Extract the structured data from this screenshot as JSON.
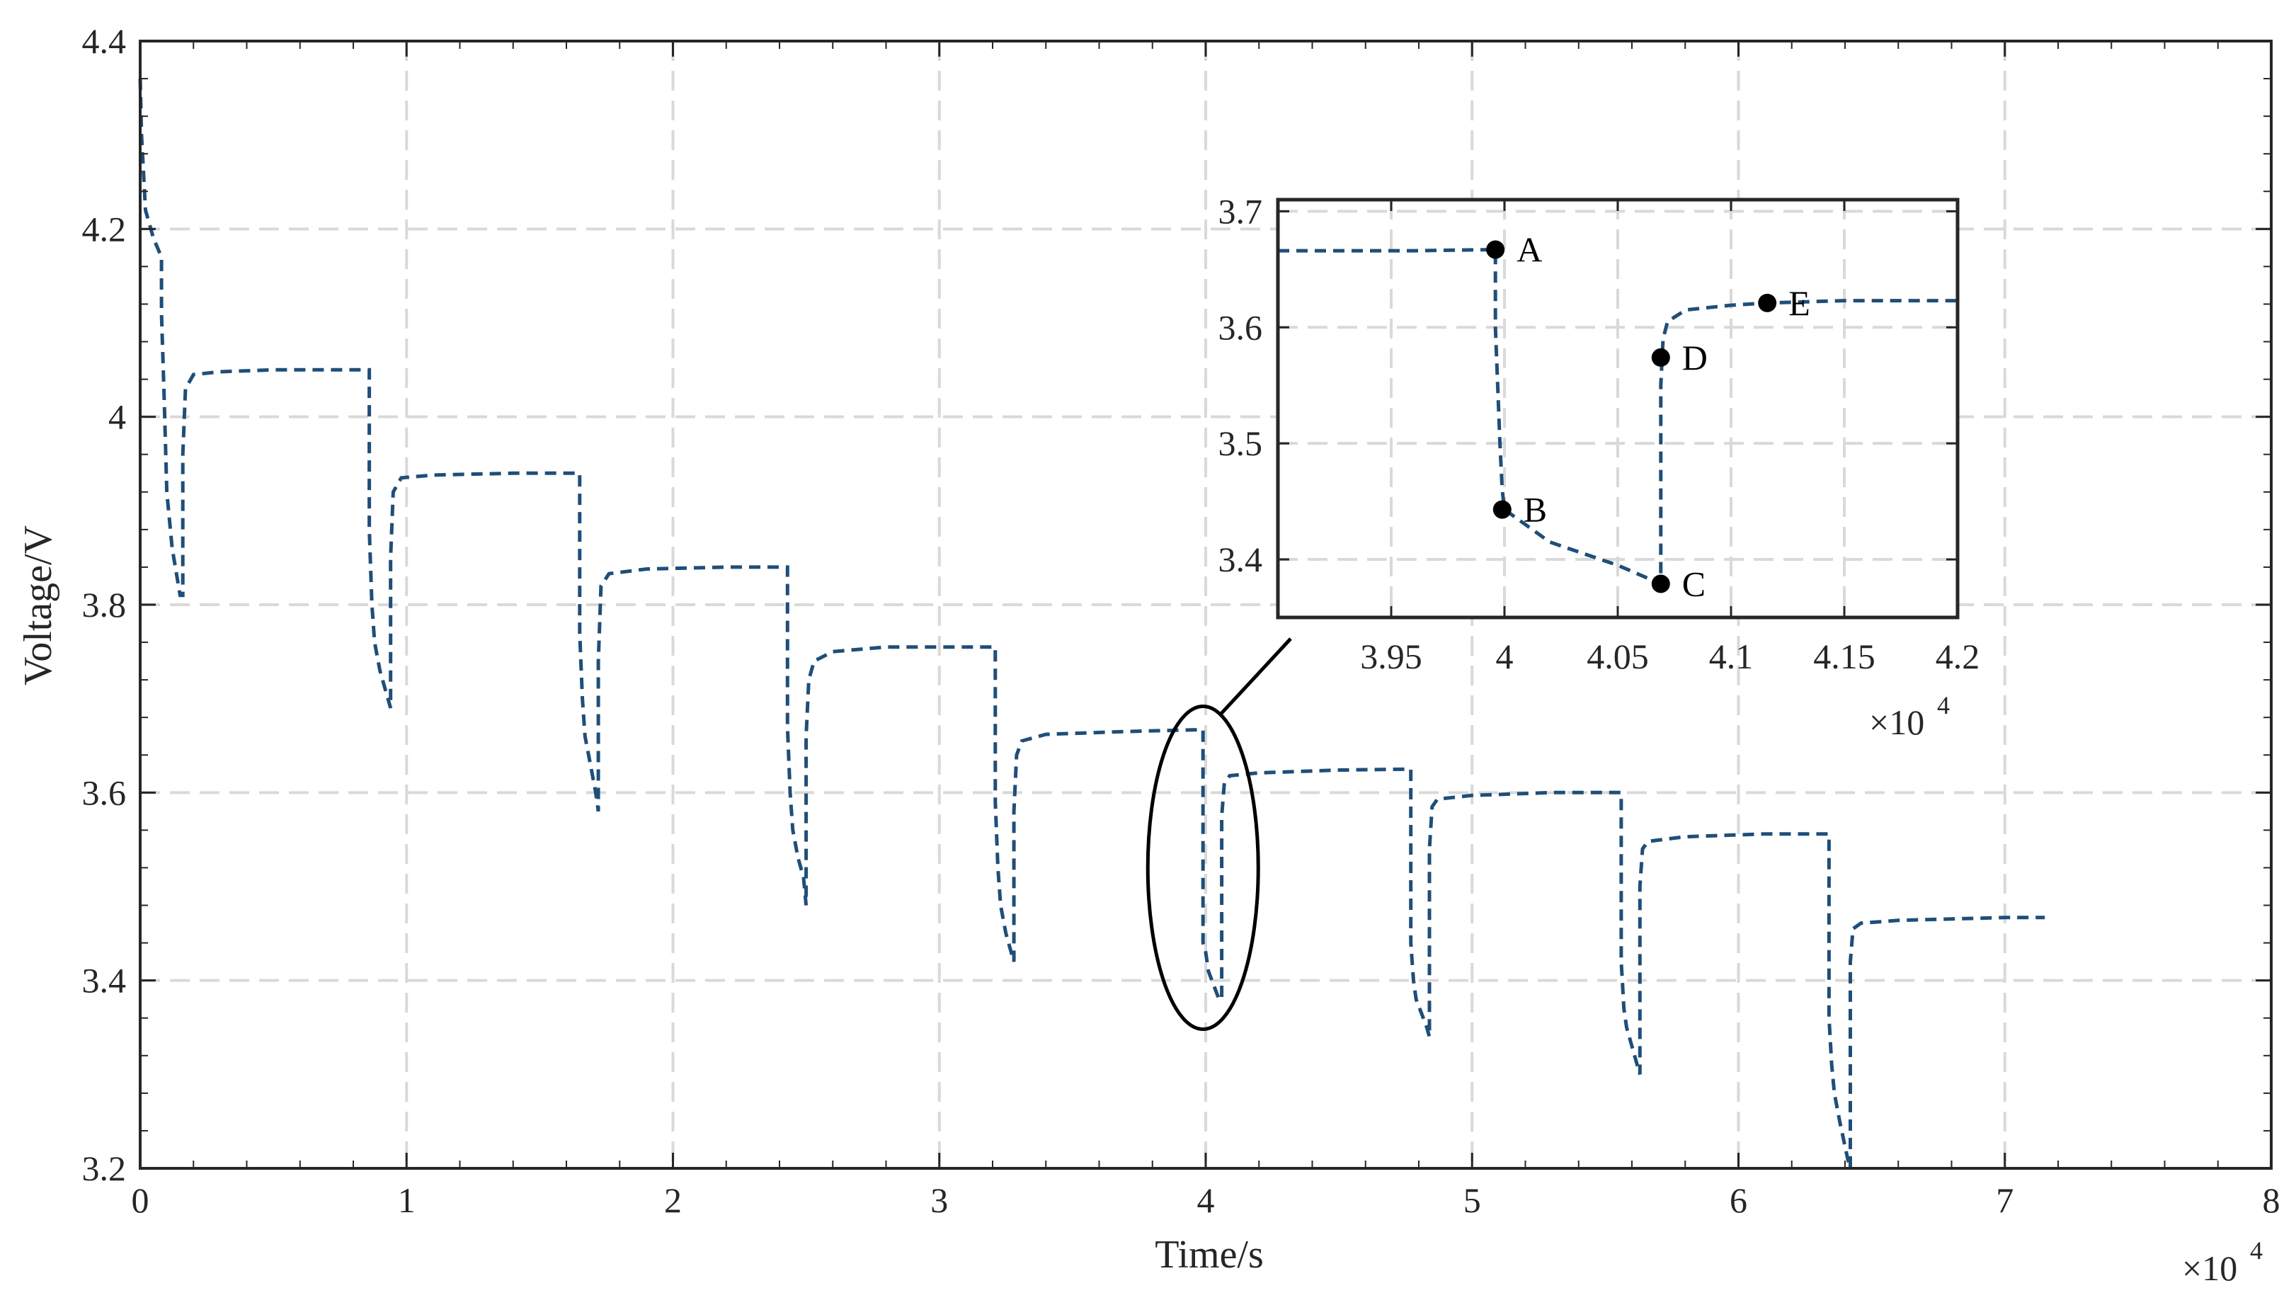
{
  "colors": {
    "series": "#1f4e79",
    "grid": "#d9d9d9",
    "axis": "#262626",
    "marker": "#000000"
  },
  "chart_data": [
    {
      "type": "line",
      "title": "",
      "xlabel": "Time/s",
      "ylabel": "Voltage/V",
      "x_multiplier": "×10^4",
      "xlim": [
        0,
        8
      ],
      "ylim": [
        3.2,
        4.4
      ],
      "x_tick_labels": [
        "0",
        "1",
        "2",
        "3",
        "4",
        "5",
        "6",
        "7",
        "8"
      ],
      "y_tick_labels": [
        "3.2",
        "3.4",
        "3.6",
        "3.8",
        "4",
        "4.2",
        "4.4"
      ],
      "grid": true,
      "line_style": "dashed",
      "series": [
        {
          "x": [
            0.0,
            0.005,
            0.02,
            0.05,
            0.08,
            0.08,
            0.09,
            0.1,
            0.12,
            0.15,
            0.16,
            0.16,
            0.17,
            0.2,
            0.3,
            0.5,
            0.86,
            0.86,
            0.87,
            0.88,
            0.9,
            0.93,
            0.94,
            0.94,
            0.95,
            0.98,
            1.1,
            1.4,
            1.65,
            1.65,
            1.66,
            1.67,
            1.69,
            1.71,
            1.72,
            1.72,
            1.73,
            1.76,
            1.9,
            2.2,
            2.43,
            2.43,
            2.44,
            2.45,
            2.47,
            2.49,
            2.5,
            2.5,
            2.51,
            2.53,
            2.6,
            2.8,
            3.21,
            3.21,
            3.22,
            3.23,
            3.25,
            3.27,
            3.28,
            3.28,
            3.29,
            3.31,
            3.4,
            3.7,
            3.99,
            3.99,
            4.0,
            4.01,
            4.03,
            4.05,
            4.06,
            4.06,
            4.07,
            4.09,
            4.2,
            4.5,
            4.77,
            4.77,
            4.78,
            4.79,
            4.81,
            4.83,
            4.84,
            4.84,
            4.85,
            4.87,
            5.0,
            5.3,
            5.56,
            5.56,
            5.57,
            5.58,
            5.6,
            5.62,
            5.63,
            5.63,
            5.64,
            5.66,
            5.8,
            6.1,
            6.34,
            6.34,
            6.35,
            6.36,
            6.38,
            6.41,
            6.42,
            6.42,
            6.43,
            6.46,
            6.6,
            7.0,
            7.15
          ],
          "y": [
            4.36,
            4.3,
            4.22,
            4.19,
            4.17,
            4.11,
            4.02,
            3.92,
            3.86,
            3.81,
            3.81,
            3.96,
            4.03,
            4.045,
            4.048,
            4.05,
            4.05,
            3.88,
            3.8,
            3.76,
            3.73,
            3.7,
            3.69,
            3.85,
            3.92,
            3.935,
            3.938,
            3.94,
            3.94,
            3.77,
            3.7,
            3.66,
            3.63,
            3.6,
            3.58,
            3.74,
            3.82,
            3.833,
            3.838,
            3.84,
            3.84,
            3.67,
            3.6,
            3.56,
            3.53,
            3.51,
            3.48,
            3.66,
            3.72,
            3.74,
            3.75,
            3.755,
            3.755,
            3.59,
            3.52,
            3.48,
            3.45,
            3.43,
            3.42,
            3.58,
            3.64,
            3.655,
            3.662,
            3.665,
            3.667,
            3.44,
            3.43,
            3.41,
            3.395,
            3.38,
            3.38,
            3.575,
            3.61,
            3.618,
            3.621,
            3.624,
            3.625,
            3.44,
            3.4,
            3.38,
            3.365,
            3.35,
            3.34,
            3.54,
            3.585,
            3.593,
            3.597,
            3.6,
            3.6,
            3.42,
            3.37,
            3.35,
            3.33,
            3.31,
            3.3,
            3.5,
            3.54,
            3.548,
            3.553,
            3.556,
            3.556,
            3.36,
            3.31,
            3.28,
            3.25,
            3.21,
            3.2,
            3.42,
            3.455,
            3.461,
            3.464,
            3.467,
            3.467
          ]
        }
      ],
      "annotations": [
        {
          "type": "ellipse",
          "center": [
            3.99,
            3.52
          ],
          "note_link": "inset"
        }
      ]
    },
    {
      "type": "line",
      "title": "",
      "xlabel": "",
      "ylabel": "",
      "x_multiplier": "×10^4",
      "xlim": [
        3.9,
        4.2
      ],
      "ylim": [
        3.35,
        3.71
      ],
      "x_tick_labels": [
        "3.95",
        "4",
        "4.05",
        "4.1",
        "4.15",
        "4.2"
      ],
      "y_tick_labels": [
        "3.4",
        "3.5",
        "3.6",
        "3.7"
      ],
      "grid": true,
      "line_style": "dashed",
      "series": [
        {
          "x": [
            3.9,
            3.96,
            3.996,
            3.996,
            3.998,
            3.999,
            4.0,
            4.02,
            4.05,
            4.069,
            4.069,
            4.07,
            4.072,
            4.08,
            4.1,
            4.116,
            4.15,
            4.2
          ],
          "y": [
            3.666,
            3.666,
            3.667,
            3.6,
            3.5,
            3.46,
            3.443,
            3.415,
            3.395,
            3.379,
            3.55,
            3.59,
            3.605,
            3.615,
            3.619,
            3.621,
            3.623,
            3.623
          ]
        }
      ],
      "points": [
        {
          "label": "A",
          "x": 3.996,
          "y": 3.667
        },
        {
          "label": "B",
          "x": 3.999,
          "y": 3.443
        },
        {
          "label": "C",
          "x": 4.069,
          "y": 3.379
        },
        {
          "label": "D",
          "x": 4.069,
          "y": 3.574
        },
        {
          "label": "E",
          "x": 4.116,
          "y": 3.621
        }
      ]
    }
  ]
}
